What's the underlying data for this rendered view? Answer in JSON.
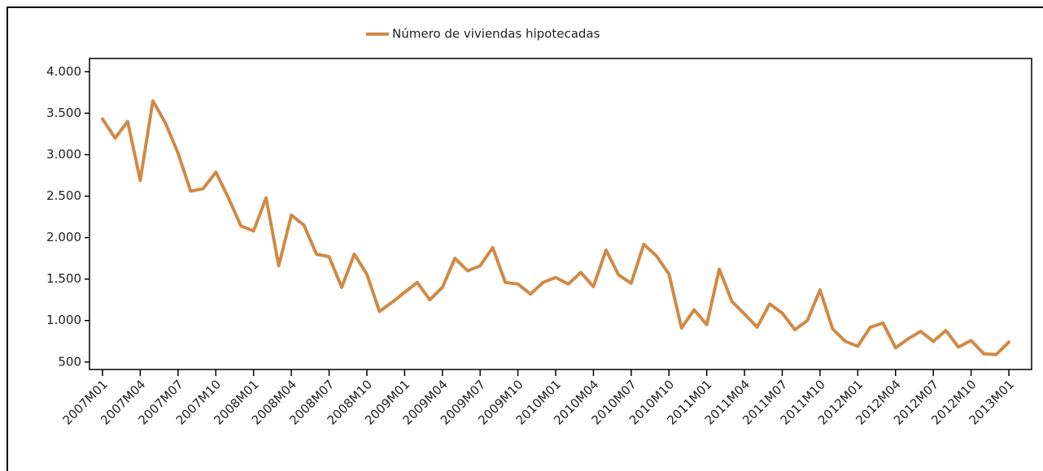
{
  "chart_data": {
    "type": "line",
    "categories": [
      "2007M01",
      null,
      null,
      "2007M04",
      null,
      null,
      "2007M07",
      null,
      null,
      "2007M10",
      null,
      null,
      "2008M01",
      null,
      null,
      "2008M04",
      null,
      null,
      "2008M07",
      null,
      null,
      "2008M10",
      null,
      null,
      "2009M01",
      null,
      null,
      "2009M04",
      null,
      null,
      "2009M07",
      null,
      null,
      "2009M10",
      null,
      null,
      "2010M01",
      null,
      null,
      "2010M04",
      null,
      null,
      "2010M07",
      null,
      null,
      "2010M10",
      null,
      null,
      "2011M01",
      null,
      null,
      "2011M04",
      null,
      null,
      "2011M07",
      null,
      null,
      "2011M10",
      null,
      null,
      "2012M01",
      null,
      null,
      "2012M04",
      null,
      null,
      "2012M07",
      null,
      null,
      "2012M10",
      null,
      null,
      "2013M01"
    ],
    "series": [
      {
        "name": "Número de viviendas hipotecadas",
        "color": "#d08a45",
        "values": [
          3430,
          3200,
          3400,
          2690,
          3650,
          3380,
          3020,
          2560,
          2590,
          2790,
          2480,
          2140,
          2080,
          2480,
          1660,
          2270,
          2150,
          1800,
          1770,
          1400,
          1800,
          1560,
          1110,
          1220,
          1340,
          1460,
          1250,
          1400,
          1750,
          1600,
          1660,
          1880,
          1460,
          1440,
          1320,
          1460,
          1520,
          1440,
          1580,
          1410,
          1850,
          1550,
          1450,
          1920,
          1780,
          1560,
          910,
          1130,
          950,
          1620,
          1230,
          1080,
          920,
          1200,
          1090,
          890,
          1000,
          1370,
          900,
          750,
          690,
          920,
          970,
          670,
          780,
          870,
          750,
          880,
          680,
          760,
          600,
          590,
          740
        ]
      }
    ],
    "ylim": [
      410,
      4160
    ],
    "yticks": [
      500,
      {
        "value": 1000,
        "label": "1.000"
      },
      {
        "value": 1500,
        "label": "1.500"
      },
      {
        "value": 2000,
        "label": "2.000"
      },
      {
        "value": 2500,
        "label": "2.500"
      },
      {
        "value": 3000,
        "label": "3.000"
      },
      {
        "value": 3500,
        "label": "3.500"
      },
      {
        "value": 4000,
        "label": "4.000"
      }
    ],
    "legend": "top"
  }
}
